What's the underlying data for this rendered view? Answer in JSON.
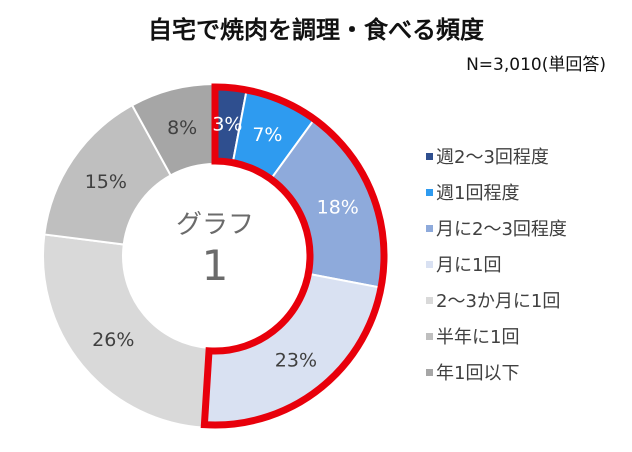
{
  "chart_data": {
    "type": "pie",
    "title": "自宅で焼肉を調理・食べる頻度",
    "subtitle": "N=3,010(単回答)",
    "center_label": [
      "グラフ",
      "1"
    ],
    "categories": [
      "週2～3回程度",
      "週1回程度",
      "月に2～3回程度",
      "月に1回",
      "2～3か月に1回",
      "半年に1回",
      "年1回以下"
    ],
    "values": [
      3,
      7,
      18,
      23,
      26,
      15,
      8
    ],
    "value_labels": [
      "3%",
      "7%",
      "18%",
      "23%",
      "26%",
      "15%",
      "8%"
    ],
    "colors": [
      "#2f4f8f",
      "#2e9bf0",
      "#8eaadb",
      "#d9e1f2",
      "#d9d9d9",
      "#bfbfbf",
      "#a6a6a6"
    ],
    "label_colors": [
      "#ffffff",
      "#ffffff",
      "#ffffff",
      "#404040",
      "#404040",
      "#404040",
      "#404040"
    ],
    "legend_position": "right",
    "highlight": {
      "color": "#e8000b",
      "from_category": 0,
      "to_category": 3
    }
  }
}
